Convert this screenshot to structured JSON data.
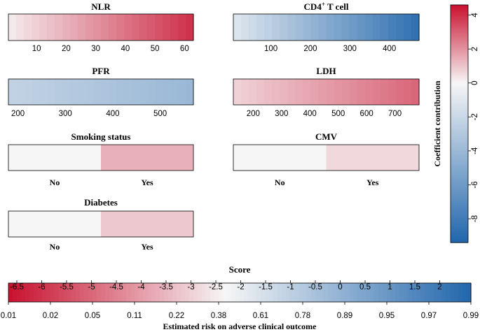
{
  "chart_data": {
    "type": "nomogram-heatmap",
    "panels": [
      {
        "title": "NLR",
        "kind": "continuous",
        "xlim": [
          0.5,
          63
        ],
        "ticks": [
          10,
          20,
          30,
          40,
          50,
          60
        ],
        "contribution": [
          0.2,
          4.0
        ]
      },
      {
        "title": "CD4",
        "title_sup": "+",
        "title_suffix": " T cell",
        "kind": "continuous",
        "xlim": [
          5,
          475
        ],
        "ticks": [
          100,
          200,
          300,
          400
        ],
        "contribution": [
          -1.0,
          -8.8
        ]
      },
      {
        "title": "PFR",
        "kind": "continuous",
        "xlim": [
          180,
          570
        ],
        "ticks": [
          200,
          300,
          400,
          500
        ],
        "contribution": [
          -2.3,
          -4.1
        ]
      },
      {
        "title": "LDH",
        "kind": "continuous",
        "xlim": [
          130,
          785
        ],
        "ticks": [
          200,
          300,
          400,
          500,
          600,
          700
        ],
        "contribution": [
          0.7,
          2.9
        ]
      },
      {
        "title": "Smoking status",
        "kind": "categorical",
        "categories": [
          "No",
          "Yes"
        ],
        "contribution": [
          0,
          1.4
        ]
      },
      {
        "title": "CMV",
        "kind": "categorical",
        "categories": [
          "No",
          "Yes"
        ],
        "contribution": [
          0,
          0.6
        ]
      },
      {
        "title": "Diabetes",
        "kind": "categorical",
        "categories": [
          "No",
          "Yes"
        ],
        "contribution": [
          0,
          0.9
        ]
      }
    ],
    "legend": {
      "title": "Coefficient contribution",
      "range": [
        -9.4,
        4.6
      ],
      "ticks": [
        4,
        2,
        0,
        -2,
        -4,
        -6,
        -8
      ]
    },
    "score_axis": {
      "title": "Score",
      "xlabel": "Estimated risk on adverse clinical outcome",
      "score_ticks": [
        "-6.5",
        "-6",
        "-5.5",
        "-5",
        "-4.5",
        "-4",
        "-3.5",
        "-3",
        "-2.5",
        "-2",
        "-1.5",
        "-1",
        "-0.5",
        "0",
        "0.5",
        "1",
        "1.5",
        "2"
      ],
      "risk_ticks": [
        "0.01",
        "0.02",
        "0.05",
        "0.11",
        "0.22",
        "0.38",
        "0.61",
        "0.78",
        "0.89",
        "0.95",
        "0.97",
        "0.99"
      ],
      "neutral_score": -2.3
    }
  },
  "colors": {
    "neg": "#2166ac",
    "pos": "#c8102e",
    "neutral": "#f6f6f6"
  }
}
